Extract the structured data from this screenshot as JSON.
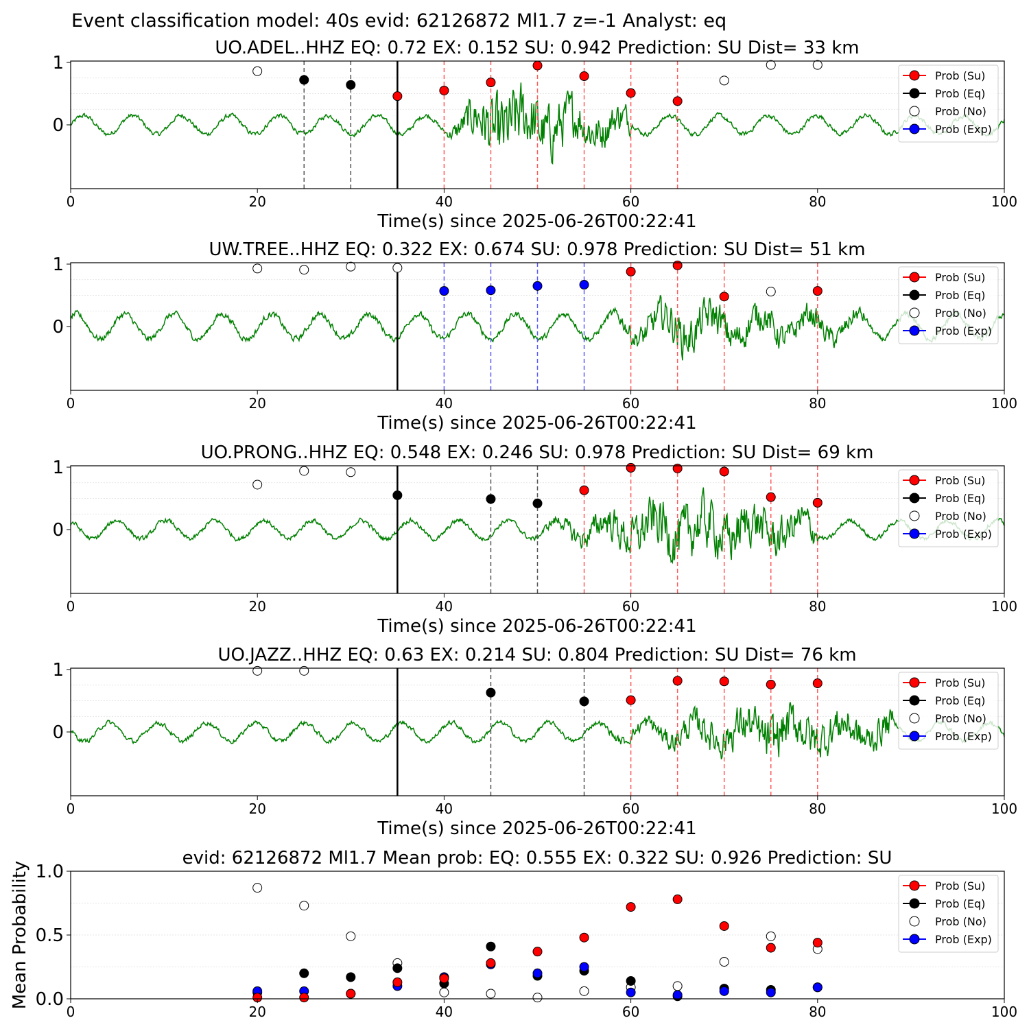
{
  "suptitle": "Event classification model: 40s evid: 62126872 Ml1.7 z=-1 Analyst: eq",
  "colors": {
    "waveform": "#008000",
    "su": "#ff0000",
    "eq": "#000000",
    "no": "#ffffff",
    "exp": "#0000ff",
    "su_line": "#ff5a5a",
    "exp_line": "#5a5aff",
    "eq_line": "#555555",
    "grid": "#dddddd"
  },
  "legend": [
    "Prob (Su)",
    "Prob (Eq)",
    "Prob (No)",
    "Prob (Exp)"
  ],
  "chart_data": [
    {
      "type": "scatter",
      "title": "UO.ADEL..HHZ   EQ: 0.72  EX: 0.152  SU: 0.942   Prediction: SU    Dist= 33 km",
      "xlabel": "Time(s) since 2025-06-26T00:22:41",
      "xlim": [
        0,
        100
      ],
      "xticks": [
        "0",
        "20",
        "40",
        "60",
        "80",
        "100"
      ],
      "yticks": [
        "1",
        "0"
      ],
      "pick": 35,
      "waveform": {
        "start": 0,
        "end": 100,
        "quiet_amp": 0.06,
        "burst_start": 40,
        "burst_peak": 46,
        "burst_end": 60,
        "burst_amp": 0.9
      },
      "points": [
        {
          "x": 20,
          "y": 0.86,
          "class": "no"
        },
        {
          "x": 25,
          "y": 0.72,
          "class": "eq"
        },
        {
          "x": 30,
          "y": 0.64,
          "class": "eq"
        },
        {
          "x": 35,
          "y": 0.46,
          "class": "su"
        },
        {
          "x": 40,
          "y": 0.55,
          "class": "su"
        },
        {
          "x": 45,
          "y": 0.68,
          "class": "su"
        },
        {
          "x": 50,
          "y": 0.95,
          "class": "su"
        },
        {
          "x": 55,
          "y": 0.78,
          "class": "su"
        },
        {
          "x": 60,
          "y": 0.51,
          "class": "su"
        },
        {
          "x": 65,
          "y": 0.38,
          "class": "su"
        },
        {
          "x": 70,
          "y": 0.71,
          "class": "no"
        },
        {
          "x": 75,
          "y": 0.96,
          "class": "no"
        },
        {
          "x": 80,
          "y": 0.96,
          "class": "no"
        }
      ]
    },
    {
      "type": "scatter",
      "title": "UW.TREE..HHZ   EQ: 0.322  EX: 0.674  SU: 0.978   Prediction: SU    Dist= 51 km",
      "xlabel": "Time(s) since 2025-06-26T00:22:41",
      "xlim": [
        0,
        100
      ],
      "xticks": [
        "0",
        "20",
        "40",
        "60",
        "80",
        "100"
      ],
      "yticks": [
        "1",
        "0"
      ],
      "pick": 35,
      "waveform": {
        "start": 0,
        "end": 100,
        "quiet_amp": 0.08,
        "burst_start": 57,
        "burst_peak": 65,
        "burst_end": 85,
        "burst_amp": 0.45
      },
      "points": [
        {
          "x": 20,
          "y": 0.93,
          "class": "no"
        },
        {
          "x": 25,
          "y": 0.91,
          "class": "no"
        },
        {
          "x": 30,
          "y": 0.96,
          "class": "no"
        },
        {
          "x": 35,
          "y": 0.94,
          "class": "no"
        },
        {
          "x": 40,
          "y": 0.57,
          "class": "exp"
        },
        {
          "x": 45,
          "y": 0.58,
          "class": "exp"
        },
        {
          "x": 50,
          "y": 0.65,
          "class": "exp"
        },
        {
          "x": 55,
          "y": 0.67,
          "class": "exp"
        },
        {
          "x": 60,
          "y": 0.88,
          "class": "su"
        },
        {
          "x": 65,
          "y": 0.98,
          "class": "su"
        },
        {
          "x": 70,
          "y": 0.48,
          "class": "su"
        },
        {
          "x": 75,
          "y": 0.56,
          "class": "no"
        },
        {
          "x": 80,
          "y": 0.57,
          "class": "su"
        }
      ]
    },
    {
      "type": "scatter",
      "title": "UO.PRONG..HHZ   EQ: 0.548  EX: 0.246  SU: 0.978   Prediction: SU    Dist= 69 km",
      "xlabel": "Time(s) since 2025-06-26T00:22:41",
      "xlim": [
        0,
        100
      ],
      "xticks": [
        "0",
        "20",
        "40",
        "60",
        "80",
        "100"
      ],
      "yticks": [
        "1",
        "0"
      ],
      "pick": 35,
      "waveform": {
        "start": 0,
        "end": 100,
        "quiet_amp": 0.06,
        "burst_start": 50,
        "burst_peak": 65,
        "burst_end": 80,
        "burst_amp": 0.7
      },
      "points": [
        {
          "x": 20,
          "y": 0.72,
          "class": "no"
        },
        {
          "x": 25,
          "y": 0.94,
          "class": "no"
        },
        {
          "x": 30,
          "y": 0.92,
          "class": "no"
        },
        {
          "x": 35,
          "y": 0.55,
          "class": "eq"
        },
        {
          "x": 45,
          "y": 0.49,
          "class": "eq"
        },
        {
          "x": 50,
          "y": 0.42,
          "class": "eq"
        },
        {
          "x": 55,
          "y": 0.63,
          "class": "su"
        },
        {
          "x": 60,
          "y": 0.99,
          "class": "su"
        },
        {
          "x": 65,
          "y": 0.98,
          "class": "su"
        },
        {
          "x": 70,
          "y": 0.93,
          "class": "su"
        },
        {
          "x": 75,
          "y": 0.52,
          "class": "su"
        },
        {
          "x": 80,
          "y": 0.43,
          "class": "su"
        }
      ]
    },
    {
      "type": "scatter",
      "title": "UO.JAZZ..HHZ   EQ: 0.63  EX: 0.214  SU: 0.804   Prediction: SU    Dist= 76 km",
      "xlabel": "Time(s) since 2025-06-26T00:22:41",
      "xlim": [
        0,
        100
      ],
      "xticks": [
        "0",
        "20",
        "40",
        "60",
        "80",
        "100"
      ],
      "yticks": [
        "1",
        "0"
      ],
      "pick": 35,
      "waveform": {
        "start": 0,
        "end": 100,
        "quiet_amp": 0.06,
        "burst_start": 57,
        "burst_peak": 75,
        "burst_end": 88,
        "burst_amp": 0.55
      },
      "points": [
        {
          "x": 20,
          "y": 0.98,
          "class": "no"
        },
        {
          "x": 25,
          "y": 0.98,
          "class": "no"
        },
        {
          "x": 45,
          "y": 0.63,
          "class": "eq"
        },
        {
          "x": 55,
          "y": 0.49,
          "class": "eq"
        },
        {
          "x": 60,
          "y": 0.51,
          "class": "su"
        },
        {
          "x": 65,
          "y": 0.82,
          "class": "su"
        },
        {
          "x": 70,
          "y": 0.81,
          "class": "su"
        },
        {
          "x": 75,
          "y": 0.76,
          "class": "su"
        },
        {
          "x": 80,
          "y": 0.78,
          "class": "su"
        }
      ]
    },
    {
      "type": "scatter",
      "title": "evid: 62126872  Ml1.7   Mean prob:   EQ: 0.555  EX: 0.322  SU: 0.926   Prediction: SU",
      "xlabel": "",
      "ylabel": "Mean Probability",
      "xlim": [
        0,
        100
      ],
      "ylim": [
        0,
        1
      ],
      "xticks": [
        "0",
        "20",
        "40",
        "60",
        "80",
        "100"
      ],
      "yticks": [
        "1.0",
        "0.5",
        "0.0"
      ],
      "series": [
        {
          "name": "Prob (No)",
          "class": "no",
          "x": [
            20,
            25,
            30,
            35,
            40,
            45,
            50,
            55,
            60,
            65,
            70,
            75,
            80
          ],
          "y": [
            0.87,
            0.73,
            0.49,
            0.28,
            0.05,
            0.04,
            0.01,
            0.06,
            0.09,
            0.1,
            0.29,
            0.49,
            0.39
          ]
        },
        {
          "name": "Prob (Eq)",
          "class": "eq",
          "x": [
            20,
            25,
            30,
            35,
            40,
            45,
            50,
            55,
            60,
            65,
            70,
            75,
            80
          ],
          "y": [
            0.05,
            0.2,
            0.17,
            0.24,
            0.12,
            0.41,
            0.18,
            0.22,
            0.14,
            0.02,
            0.08,
            0.07,
            0.09
          ]
        },
        {
          "name": "Prob (Exp)",
          "class": "exp",
          "x": [
            20,
            25,
            30,
            35,
            40,
            45,
            50,
            55,
            60,
            65,
            70,
            75,
            80
          ],
          "y": [
            0.06,
            0.06,
            0.04,
            0.1,
            0.17,
            0.27,
            0.2,
            0.25,
            0.05,
            0.03,
            0.06,
            0.05,
            0.09
          ]
        },
        {
          "name": "Prob (Su)",
          "class": "su",
          "x": [
            20,
            25,
            30,
            35,
            40,
            45,
            50,
            55,
            60,
            65,
            70,
            75,
            80
          ],
          "y": [
            0.01,
            0.01,
            0.04,
            0.13,
            0.16,
            0.28,
            0.37,
            0.48,
            0.72,
            0.78,
            0.57,
            0.4,
            0.44
          ]
        }
      ]
    }
  ]
}
